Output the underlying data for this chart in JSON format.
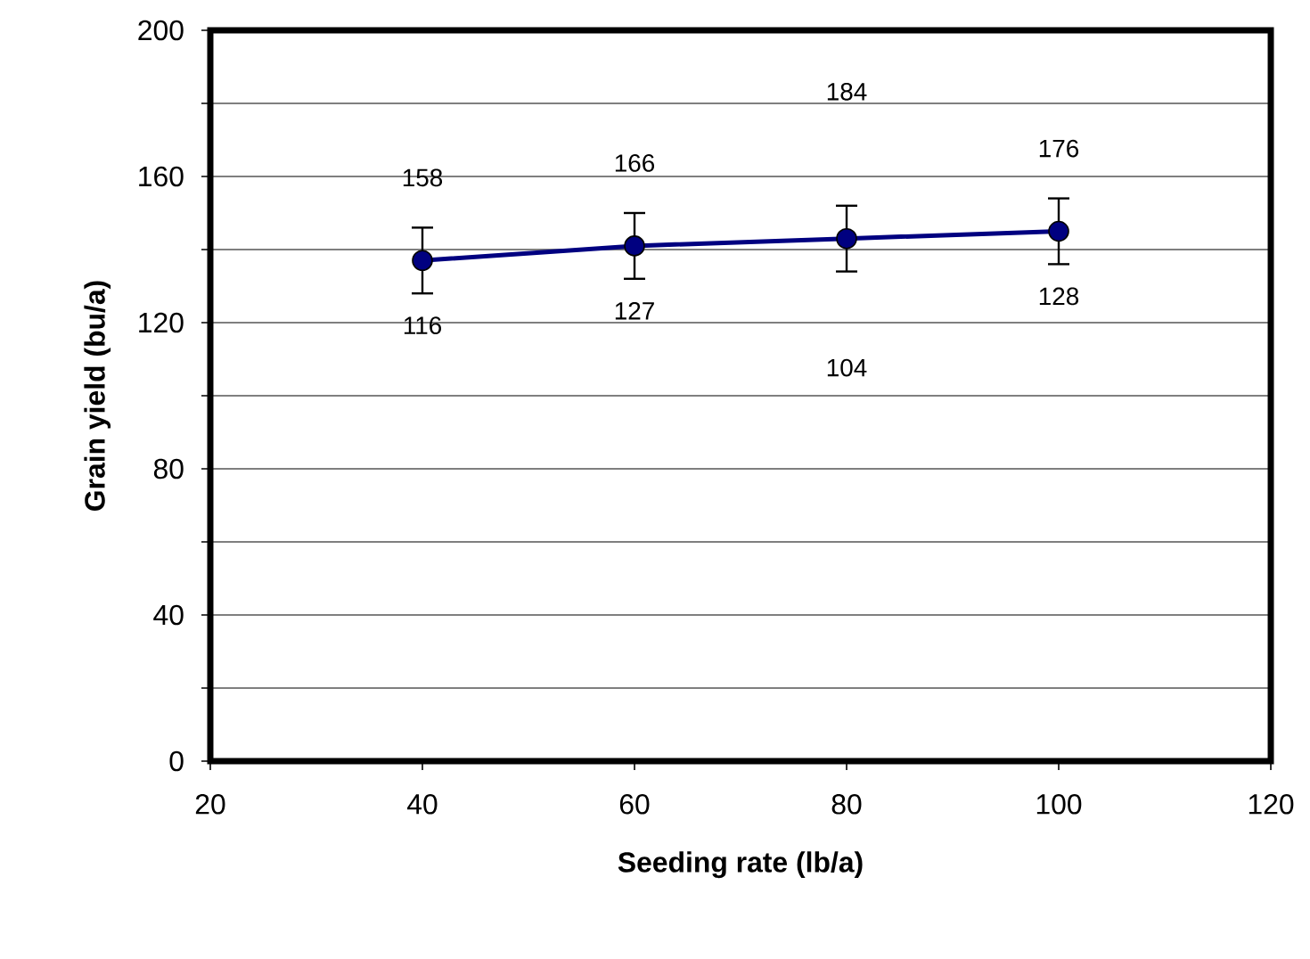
{
  "chart_data": {
    "type": "line",
    "xlabel": "Seeding rate (lb/a)",
    "ylabel": "Grain yield (bu/a)",
    "x": [
      40,
      60,
      80,
      100
    ],
    "series": [
      {
        "color": "#000080",
        "values": [
          137,
          141,
          143,
          145
        ],
        "errors": [
          9,
          9,
          9,
          9
        ]
      }
    ],
    "marker": "circle",
    "line_style": "solid",
    "grid": "y",
    "xlim": [
      20,
      120
    ],
    "xticks": [
      20,
      40,
      60,
      80,
      100,
      120
    ],
    "ylim": [
      0,
      200
    ],
    "yticks": [
      0,
      {
        "value": 20,
        "label": null
      },
      40,
      {
        "value": 60,
        "label": null
      },
      80,
      {
        "value": 100,
        "label": null
      },
      120,
      {
        "value": 140,
        "label": null
      },
      160,
      {
        "value": 180,
        "label": null
      },
      200
    ],
    "annotations": [
      "158",
      "116",
      "166",
      "127",
      "184",
      "104",
      "176",
      "128"
    ]
  }
}
